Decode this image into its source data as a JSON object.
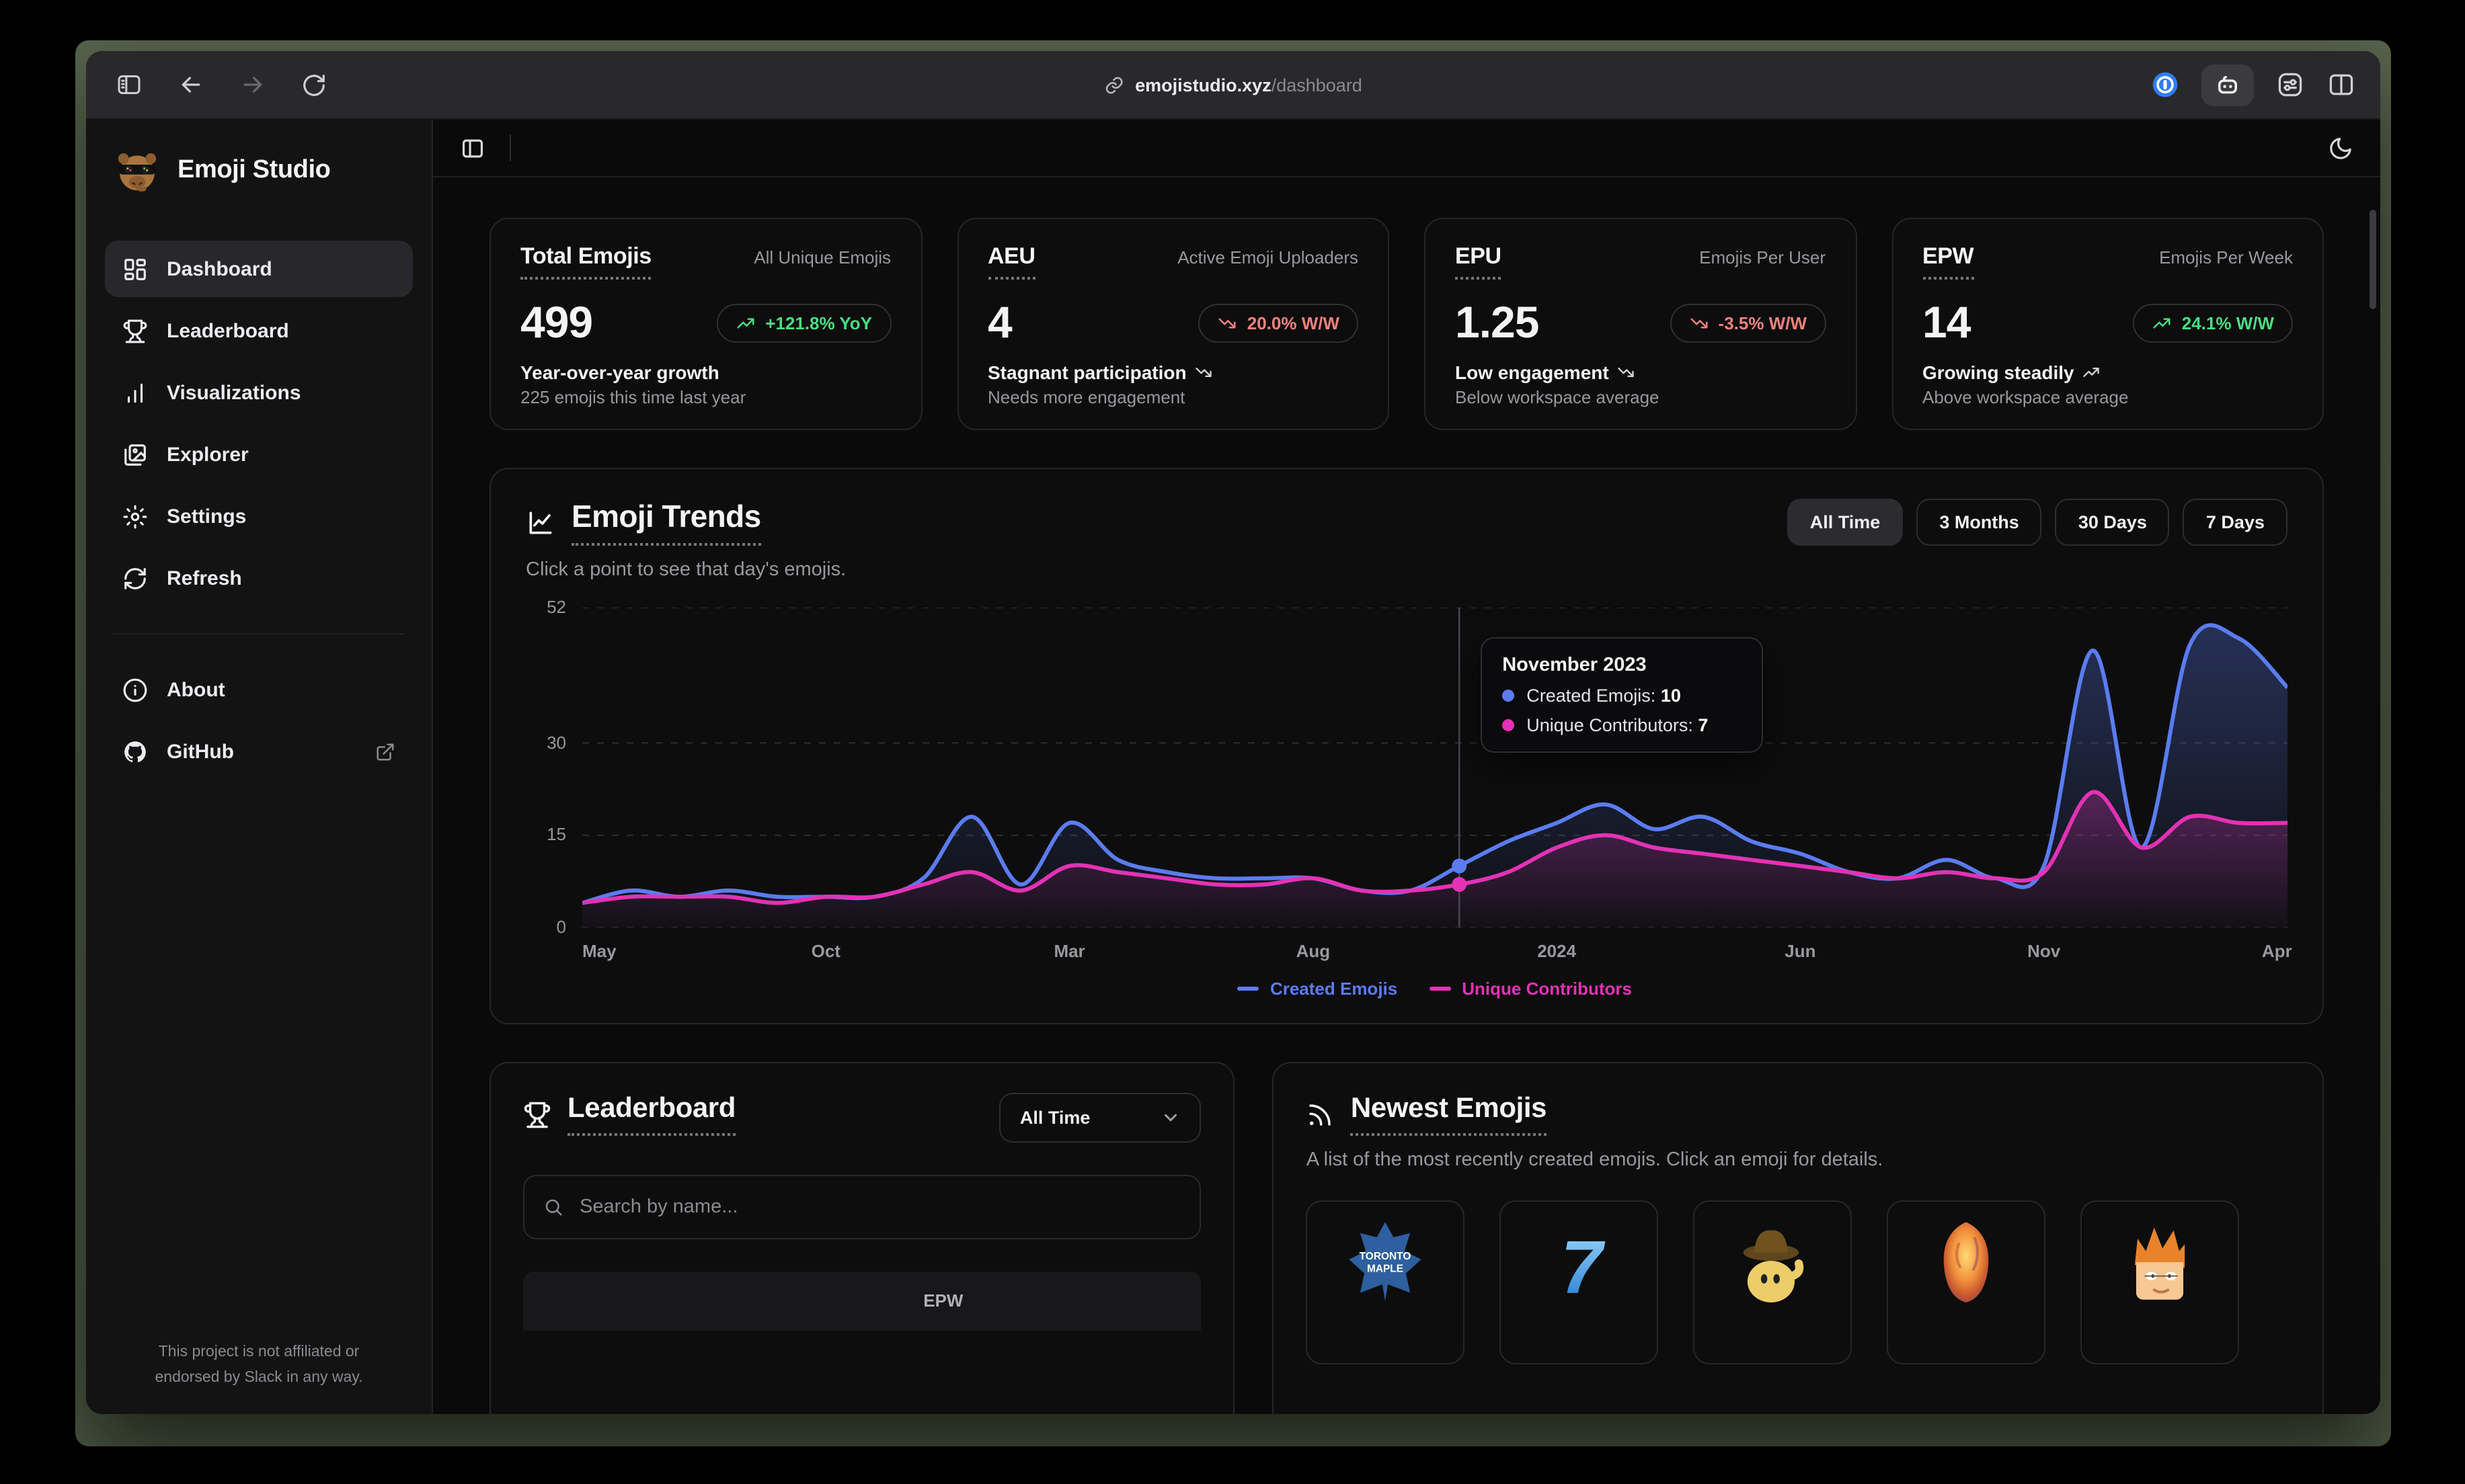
{
  "colors": {
    "green": "#4ade80",
    "red": "#f0817b",
    "blue": "#5b7cf0",
    "pink": "#e332b4"
  },
  "browser": {
    "url_host": "emojistudio.xyz",
    "url_path": "/dashboard"
  },
  "sidebar": {
    "app_title": "Emoji Studio",
    "logo": "capybara-sunglasses-emoji",
    "items": [
      {
        "label": "Dashboard",
        "icon": "dashboard-grid",
        "active": true
      },
      {
        "label": "Leaderboard",
        "icon": "trophy"
      },
      {
        "label": "Visualizations",
        "icon": "bar-chart"
      },
      {
        "label": "Explorer",
        "icon": "images"
      },
      {
        "label": "Settings",
        "icon": "gear"
      },
      {
        "label": "Refresh",
        "icon": "refresh"
      }
    ],
    "secondary_items": [
      {
        "label": "About",
        "icon": "info"
      },
      {
        "label": "GitHub",
        "icon": "github",
        "external": true
      }
    ],
    "footer_line1": "This project is not affiliated or",
    "footer_line2": "endorsed by Slack in any way."
  },
  "stats_cards": [
    {
      "title": "Total Emojis",
      "subtitle": "All Unique Emojis",
      "value": "499",
      "badge_text": "+121.8% YoY",
      "badge_trend": "up",
      "note_title": "Year-over-year growth",
      "note_trend": "",
      "note_sub": "225 emojis this time last year"
    },
    {
      "title": "AEU",
      "subtitle": "Active Emoji Uploaders",
      "value": "4",
      "badge_text": "20.0% W/W",
      "badge_trend": "down",
      "note_title": "Stagnant participation",
      "note_trend": "down",
      "note_sub": "Needs more engagement"
    },
    {
      "title": "EPU",
      "subtitle": "Emojis Per User",
      "value": "1.25",
      "badge_text": "-3.5% W/W",
      "badge_trend": "down",
      "note_title": "Low engagement",
      "note_trend": "down",
      "note_sub": "Below workspace average"
    },
    {
      "title": "EPW",
      "subtitle": "Emojis Per Week",
      "value": "14",
      "badge_text": "24.1% W/W",
      "badge_trend": "up",
      "note_title": "Growing steadily",
      "note_trend": "up",
      "note_sub": "Above workspace average"
    }
  ],
  "trends": {
    "title": "Emoji Trends",
    "subtitle": "Click a point to see that day's emojis.",
    "range_buttons": [
      {
        "label": "All Time",
        "active": true
      },
      {
        "label": "3 Months",
        "active": false
      },
      {
        "label": "30 Days",
        "active": false
      },
      {
        "label": "7 Days",
        "active": false
      }
    ],
    "tooltip": {
      "title": "November 2023",
      "rows": [
        {
          "label": "Created Emojis:",
          "value": "10",
          "color_key": "blue"
        },
        {
          "label": "Unique Contributors:",
          "value": "7",
          "color_key": "pink"
        }
      ]
    },
    "legend": [
      {
        "label": "Created Emojis",
        "color_key": "blue"
      },
      {
        "label": "Unique Contributors",
        "color_key": "pink"
      }
    ]
  },
  "chart_data": {
    "type": "line",
    "title": "Emoji Trends",
    "x_tick_labels": [
      "May",
      "Oct",
      "Mar",
      "Aug",
      "2024",
      "Jun",
      "Nov",
      "Apr"
    ],
    "x_tick_positions": [
      0,
      5,
      10,
      15,
      20,
      25,
      30,
      35
    ],
    "y_ticks": [
      0,
      15,
      30,
      52
    ],
    "ylim": [
      0,
      52
    ],
    "grid": "dashed-horizontal",
    "legend_position": "bottom-center",
    "highlight_index": 18,
    "highlight": {
      "label": "November 2023",
      "created_emojis": 10,
      "unique_contributors": 7
    },
    "series": [
      {
        "name": "Created Emojis",
        "color_key": "blue",
        "values": [
          4,
          6,
          5,
          6,
          5,
          5,
          5,
          8,
          18,
          7,
          17,
          11,
          9,
          8,
          8,
          8,
          6,
          6,
          10,
          14,
          17,
          20,
          16,
          18,
          14,
          12,
          9,
          8,
          11,
          8,
          10,
          45,
          13,
          46,
          47,
          39
        ]
      },
      {
        "name": "Unique Contributors",
        "color_key": "pink",
        "values": [
          4,
          5,
          5,
          5,
          4,
          5,
          5,
          7,
          9,
          6,
          10,
          9,
          8,
          7,
          7,
          8,
          6,
          6,
          7,
          9,
          13,
          15,
          13,
          12,
          11,
          10,
          9,
          8,
          9,
          8,
          9,
          22,
          13,
          18,
          17,
          17
        ]
      }
    ]
  },
  "leaderboard": {
    "title": "Leaderboard",
    "select_value": "All Time",
    "search_placeholder": "Search by name...",
    "table": {
      "visible_column": "EPW"
    }
  },
  "newest": {
    "title": "Newest Emojis",
    "subtitle": "A list of the most recently created emojis. Click an emoji for details.",
    "tiles": [
      "toronto-maple-leafs-emoji",
      "blue-seven-emoji",
      "cowboy-emoji",
      "fireball-emoji",
      "fry-emoji"
    ]
  }
}
